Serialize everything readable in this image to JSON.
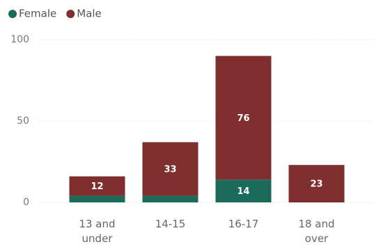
{
  "chart_data": {
    "type": "stacked_bar",
    "categories": [
      "13 and under",
      "14-15",
      "16-17",
      "18 and over"
    ],
    "series": [
      {
        "name": "Female",
        "color": "#1b6b5a",
        "values": [
          4,
          4,
          14,
          0
        ]
      },
      {
        "name": "Male",
        "color": "#7f2e2e",
        "values": [
          12,
          33,
          76,
          23
        ]
      }
    ],
    "ylim": [
      0,
      100
    ],
    "yticks": [
      0,
      50,
      100
    ],
    "grid": true,
    "legend": "top-left"
  }
}
